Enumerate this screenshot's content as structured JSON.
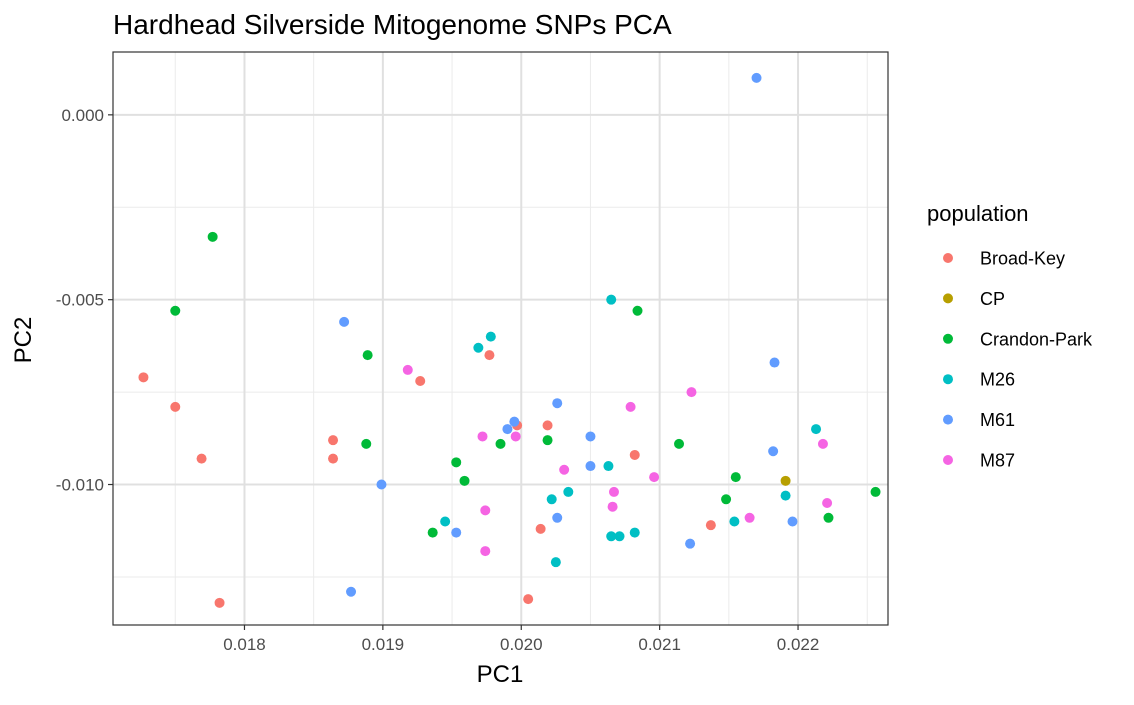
{
  "chart_data": {
    "type": "scatter",
    "title": "Hardhead Silverside Mitogenome SNPs PCA",
    "xlabel": "PC1",
    "ylabel": "PC2",
    "xlim": [
      0.01705,
      0.02265
    ],
    "ylim": [
      -0.0138,
      0.0017
    ],
    "x_ticks": [
      0.018,
      0.019,
      0.02,
      0.021,
      0.022
    ],
    "x_tick_labels": [
      "0.018",
      "0.019",
      "0.020",
      "0.021",
      "0.022"
    ],
    "y_ticks": [
      0.0,
      -0.005,
      -0.01
    ],
    "y_tick_labels": [
      "0.000",
      "-0.005",
      "-0.010"
    ],
    "grid": true,
    "legend": {
      "title": "population",
      "position": "right"
    },
    "series": [
      {
        "name": "Broad-Key",
        "color": "#F8766D",
        "points": [
          [
            0.01727,
            -0.0071
          ],
          [
            0.0175,
            -0.0079
          ],
          [
            0.01769,
            -0.0093
          ],
          [
            0.01782,
            -0.0132
          ],
          [
            0.01864,
            -0.0088
          ],
          [
            0.01864,
            -0.0093
          ],
          [
            0.01927,
            -0.0072
          ],
          [
            0.01977,
            -0.0065
          ],
          [
            0.01997,
            -0.0084
          ],
          [
            0.02005,
            -0.0131
          ],
          [
            0.02014,
            -0.0112
          ],
          [
            0.02019,
            -0.0084
          ],
          [
            0.02082,
            -0.0092
          ],
          [
            0.02137,
            -0.0111
          ]
        ]
      },
      {
        "name": "CP",
        "color": "#B79F00",
        "points": [
          [
            0.02191,
            -0.0099
          ]
        ]
      },
      {
        "name": "Crandon-Park",
        "color": "#00BA38",
        "points": [
          [
            0.0175,
            -0.0053
          ],
          [
            0.01777,
            -0.0033
          ],
          [
            0.01888,
            -0.0089
          ],
          [
            0.01889,
            -0.0065
          ],
          [
            0.01936,
            -0.0113
          ],
          [
            0.01953,
            -0.0094
          ],
          [
            0.01959,
            -0.0099
          ],
          [
            0.01985,
            -0.0089
          ],
          [
            0.02019,
            -0.0088
          ],
          [
            0.02084,
            -0.0053
          ],
          [
            0.02114,
            -0.0089
          ],
          [
            0.02148,
            -0.0104
          ],
          [
            0.02155,
            -0.0098
          ],
          [
            0.02222,
            -0.0109
          ],
          [
            0.02256,
            -0.0102
          ]
        ]
      },
      {
        "name": "M26",
        "color": "#00BFC4",
        "points": [
          [
            0.01945,
            -0.011
          ],
          [
            0.01969,
            -0.0063
          ],
          [
            0.01978,
            -0.006
          ],
          [
            0.02022,
            -0.0104
          ],
          [
            0.02025,
            -0.0121
          ],
          [
            0.02034,
            -0.0102
          ],
          [
            0.02063,
            -0.0095
          ],
          [
            0.02065,
            -0.005
          ],
          [
            0.02065,
            -0.0114
          ],
          [
            0.02071,
            -0.0114
          ],
          [
            0.02082,
            -0.0113
          ],
          [
            0.02154,
            -0.011
          ],
          [
            0.02191,
            -0.0103
          ],
          [
            0.02213,
            -0.0085
          ]
        ]
      },
      {
        "name": "M61",
        "color": "#619CFF",
        "points": [
          [
            0.01872,
            -0.0056
          ],
          [
            0.01877,
            -0.0129
          ],
          [
            0.01899,
            -0.01
          ],
          [
            0.01953,
            -0.0113
          ],
          [
            0.0199,
            -0.0085
          ],
          [
            0.01995,
            -0.0083
          ],
          [
            0.02026,
            -0.0078
          ],
          [
            0.02026,
            -0.0109
          ],
          [
            0.0205,
            -0.0087
          ],
          [
            0.0205,
            -0.0095
          ],
          [
            0.02122,
            -0.0116
          ],
          [
            0.0217,
            0.001
          ],
          [
            0.02182,
            -0.0091
          ],
          [
            0.02183,
            -0.0067
          ],
          [
            0.02196,
            -0.011
          ]
        ]
      },
      {
        "name": "M87",
        "color": "#F564E3",
        "points": [
          [
            0.01918,
            -0.0069
          ],
          [
            0.01972,
            -0.0087
          ],
          [
            0.01974,
            -0.0107
          ],
          [
            0.01974,
            -0.0118
          ],
          [
            0.01996,
            -0.0087
          ],
          [
            0.02031,
            -0.0096
          ],
          [
            0.02066,
            -0.0106
          ],
          [
            0.02067,
            -0.0102
          ],
          [
            0.02079,
            -0.0079
          ],
          [
            0.02096,
            -0.0098
          ],
          [
            0.02123,
            -0.0075
          ],
          [
            0.02165,
            -0.0109
          ],
          [
            0.02218,
            -0.0089
          ],
          [
            0.02221,
            -0.0105
          ]
        ]
      }
    ]
  }
}
